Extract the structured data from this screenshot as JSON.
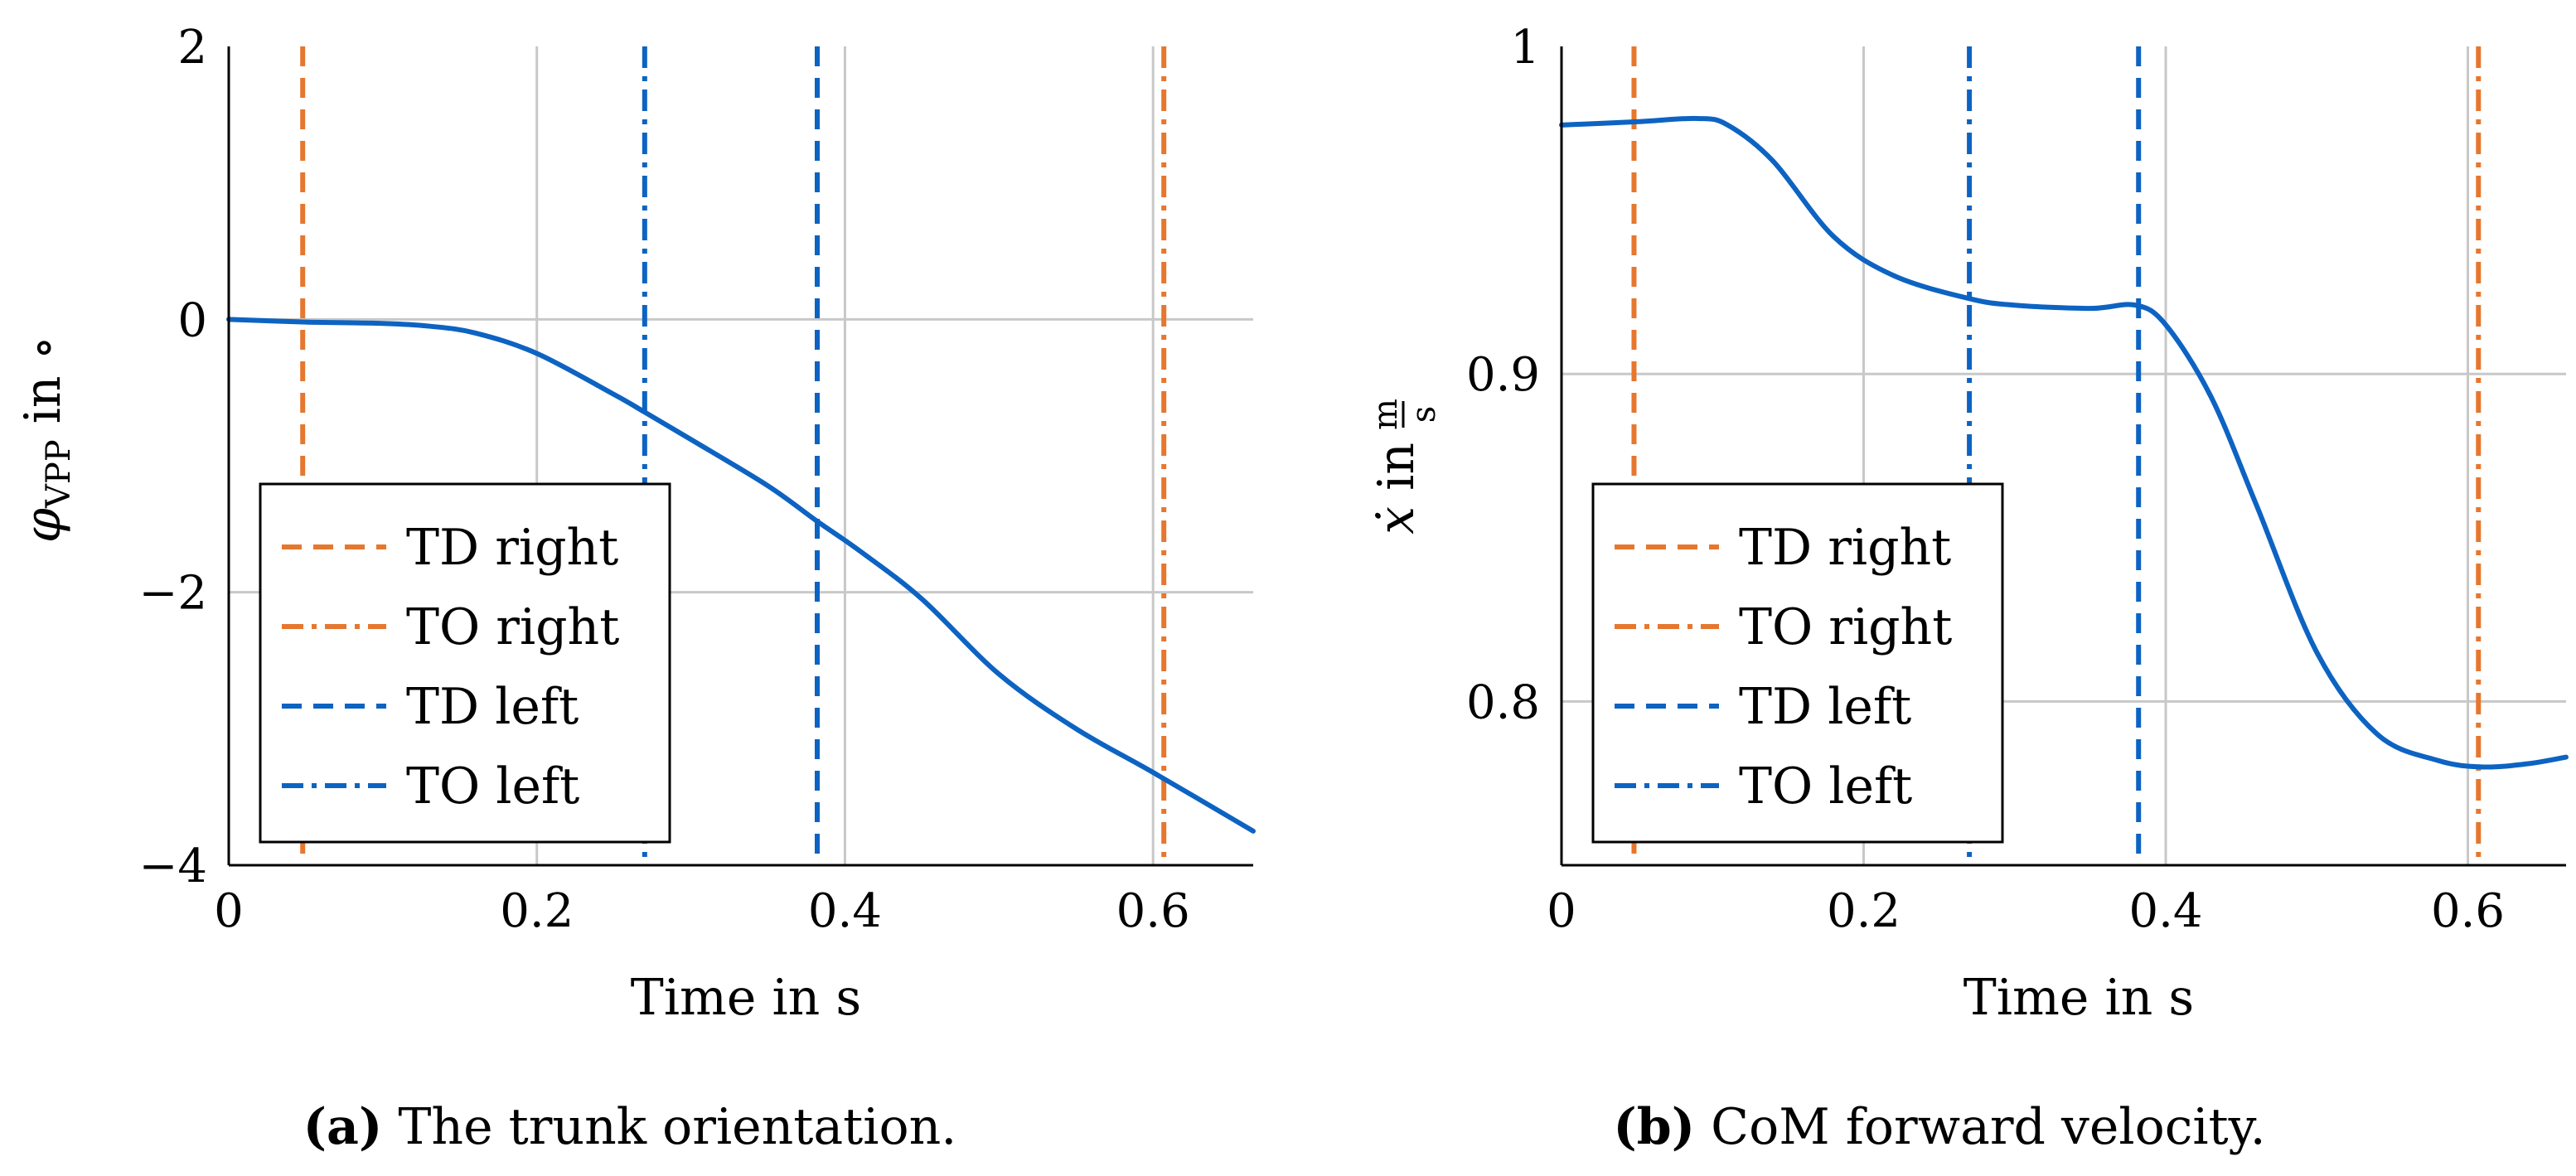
{
  "figure": {
    "panels": [
      {
        "caption_letter": "(a)",
        "caption_text": "The trunk orientation."
      },
      {
        "caption_letter": "(b)",
        "caption_text": "CoM forward velocity."
      }
    ]
  },
  "colors": {
    "orange": "#e6772e",
    "blue": "#0d63c2",
    "grid": "#c8c8c8"
  },
  "chart_data": [
    {
      "type": "line",
      "title": "",
      "caption": "(a) The trunk orientation.",
      "xlabel": "Time in s",
      "ylabel_symbol": "φ",
      "ylabel_subscript": "VPP",
      "ylabel_unit": " in ∘",
      "xlim": [
        0,
        0.665
      ],
      "ylim": [
        -4,
        2
      ],
      "xticks": [
        0,
        0.2,
        0.4,
        0.6
      ],
      "xtick_labels": [
        "0",
        "0.2",
        "0.4",
        "0.6"
      ],
      "yticks": [
        -4,
        -2,
        0,
        2
      ],
      "ytick_labels": [
        "−4",
        "−2",
        "0",
        "2"
      ],
      "grid": true,
      "legend_position": "bottom-left",
      "events": [
        {
          "name": "TD right",
          "x": 0.048,
          "color": "orange",
          "style": "dashed"
        },
        {
          "name": "TO right",
          "x": 0.607,
          "color": "orange",
          "style": "dashdot"
        },
        {
          "name": "TD left",
          "x": 0.382,
          "color": "blue",
          "style": "dashed"
        },
        {
          "name": "TO left",
          "x": 0.27,
          "color": "blue",
          "style": "dashdot"
        }
      ],
      "series": [
        {
          "name": "φ_VPP",
          "color": "blue",
          "x": [
            0,
            0.05,
            0.1,
            0.13,
            0.16,
            0.2,
            0.25,
            0.27,
            0.3,
            0.35,
            0.382,
            0.41,
            0.45,
            0.5,
            0.55,
            0.6,
            0.665
          ],
          "y": [
            0,
            -0.02,
            -0.03,
            -0.05,
            -0.1,
            -0.25,
            -0.55,
            -0.68,
            -0.88,
            -1.22,
            -1.48,
            -1.7,
            -2.05,
            -2.6,
            -3.0,
            -3.32,
            -3.75
          ]
        }
      ]
    },
    {
      "type": "line",
      "title": "",
      "caption": "(b) CoM forward velocity.",
      "xlabel": "Time in s",
      "ylabel_symbol": "ẋ",
      "ylabel_unit_prefix": " in ",
      "ylabel_unit_num": "m",
      "ylabel_unit_den": "s",
      "xlim": [
        0,
        0.665
      ],
      "ylim": [
        0.75,
        1.0
      ],
      "xticks": [
        0,
        0.2,
        0.4,
        0.6
      ],
      "xtick_labels": [
        "0",
        "0.2",
        "0.4",
        "0.6"
      ],
      "yticks": [
        0.8,
        0.9,
        1.0
      ],
      "ytick_labels": [
        "0.8",
        "0.9",
        "1"
      ],
      "grid": true,
      "legend_position": "bottom-left",
      "events": [
        {
          "name": "TD right",
          "x": 0.048,
          "color": "orange",
          "style": "dashed"
        },
        {
          "name": "TO right",
          "x": 0.607,
          "color": "orange",
          "style": "dashdot"
        },
        {
          "name": "TD left",
          "x": 0.382,
          "color": "blue",
          "style": "dashed"
        },
        {
          "name": "TO left",
          "x": 0.27,
          "color": "blue",
          "style": "dashdot"
        }
      ],
      "series": [
        {
          "name": "ẋ",
          "color": "blue",
          "x": [
            0,
            0.05,
            0.09,
            0.11,
            0.14,
            0.18,
            0.22,
            0.27,
            0.3,
            0.35,
            0.38,
            0.4,
            0.43,
            0.46,
            0.5,
            0.54,
            0.58,
            0.61,
            0.64,
            0.665
          ],
          "y": [
            0.976,
            0.977,
            0.978,
            0.976,
            0.965,
            0.942,
            0.93,
            0.923,
            0.921,
            0.92,
            0.921,
            0.915,
            0.893,
            0.86,
            0.815,
            0.79,
            0.782,
            0.78,
            0.781,
            0.783
          ]
        }
      ]
    }
  ]
}
